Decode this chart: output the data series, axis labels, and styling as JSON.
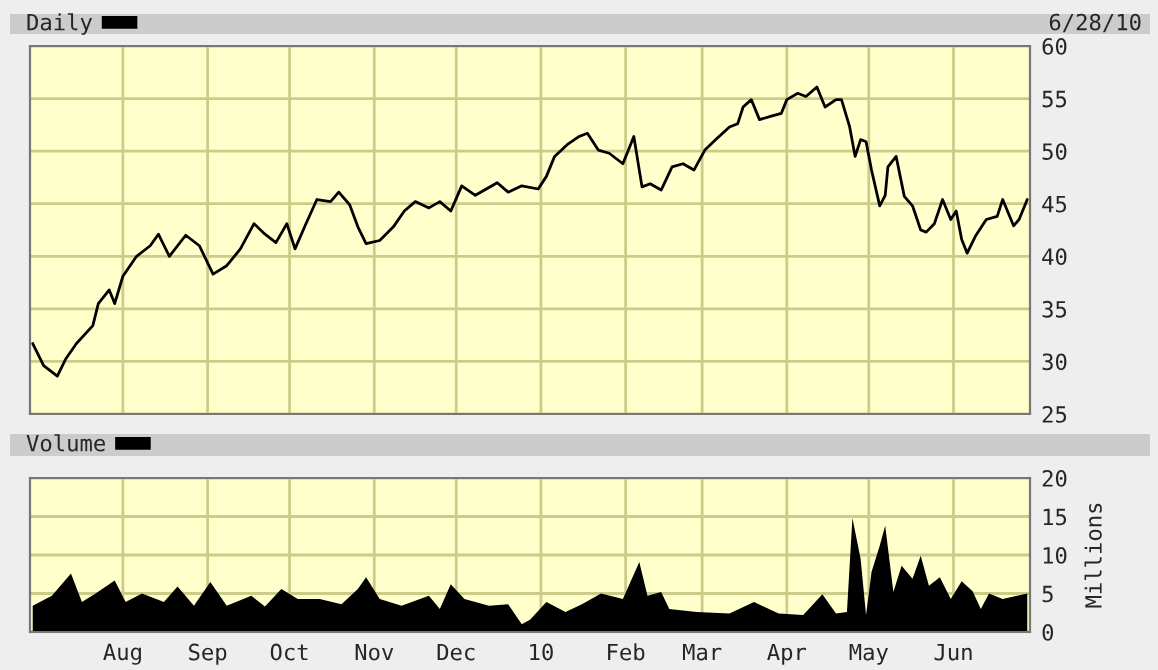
{
  "chart_data": [
    {
      "type": "line",
      "tick_labels": "y",
      "grid": true,
      "legend": "top left",
      "annotations": [
        "6/28/10"
      ],
      "xticks": [
        {
          "value": "2009-08-01",
          "label": null
        },
        {
          "value": "2009-09-01",
          "label": null
        },
        {
          "value": "2009-10-01",
          "label": null
        },
        {
          "value": "2009-11-01",
          "label": null
        },
        {
          "value": "2009-12-01",
          "label": null
        },
        {
          "value": "2010-01-01",
          "label": null
        },
        {
          "value": "2010-02-01",
          "label": null
        },
        {
          "value": "2010-03-01",
          "label": null
        },
        {
          "value": "2010-04-01",
          "label": null
        },
        {
          "value": "2010-05-01",
          "label": null
        },
        {
          "value": "2010-06-01",
          "label": null
        }
      ],
      "x": [
        "2009-06-29",
        "2009-07-03",
        "2009-07-08",
        "2009-07-11",
        "2009-07-15",
        "2009-07-21",
        "2009-07-23",
        "2009-07-27",
        "2009-07-29",
        "2009-08-01",
        "2009-08-06",
        "2009-08-11",
        "2009-08-14",
        "2009-08-18",
        "2009-08-24",
        "2009-08-29",
        "2009-09-03",
        "2009-09-08",
        "2009-09-13",
        "2009-09-18",
        "2009-09-22",
        "2009-09-26",
        "2009-09-30",
        "2009-10-03",
        "2009-10-07",
        "2009-10-11",
        "2009-10-16",
        "2009-10-19",
        "2009-10-23",
        "2009-10-26",
        "2009-10-29",
        "2009-11-03",
        "2009-11-08",
        "2009-11-12",
        "2009-11-16",
        "2009-11-21",
        "2009-11-25",
        "2009-11-29",
        "2009-12-03",
        "2009-12-08",
        "2009-12-12",
        "2009-12-16",
        "2009-12-20",
        "2009-12-25",
        "2009-12-31",
        "2010-01-03",
        "2010-01-06",
        "2010-01-11",
        "2010-01-15",
        "2010-01-18",
        "2010-01-22",
        "2010-01-26",
        "2010-01-31",
        "2010-02-04",
        "2010-02-07",
        "2010-02-10",
        "2010-02-14",
        "2010-02-18",
        "2010-02-22",
        "2010-02-26",
        "2010-03-02",
        "2010-03-06",
        "2010-03-11",
        "2010-03-14",
        "2010-03-16",
        "2010-03-19",
        "2010-03-22",
        "2010-03-26",
        "2010-03-30",
        "2010-04-01",
        "2010-04-05",
        "2010-04-08",
        "2010-04-12",
        "2010-04-15",
        "2010-04-19",
        "2010-04-21",
        "2010-04-24",
        "2010-04-26",
        "2010-04-28",
        "2010-04-30",
        "2010-05-02",
        "2010-05-05",
        "2010-05-07",
        "2010-05-08",
        "2010-05-11",
        "2010-05-14",
        "2010-05-17",
        "2010-05-20",
        "2010-05-22",
        "2010-05-25",
        "2010-05-28",
        "2010-05-31",
        "2010-06-02",
        "2010-06-04",
        "2010-06-06",
        "2010-06-09",
        "2010-06-13",
        "2010-06-17",
        "2010-06-19",
        "2010-06-23",
        "2010-06-25",
        "2010-06-28"
      ],
      "series": [
        {
          "name": "Daily",
          "color": "#000000",
          "values": [
            31.7,
            29.6,
            28.6,
            30.2,
            31.7,
            33.4,
            35.5,
            36.8,
            35.5,
            38.1,
            40.0,
            41.0,
            42.1,
            40.0,
            42.0,
            41.0,
            38.3,
            39.1,
            40.7,
            43.1,
            42.1,
            41.3,
            43.1,
            40.7,
            43.1,
            45.4,
            45.2,
            46.1,
            44.9,
            42.8,
            41.2,
            41.5,
            42.8,
            44.3,
            45.2,
            44.6,
            45.2,
            44.3,
            46.7,
            45.8,
            46.4,
            47.0,
            46.1,
            46.7,
            46.4,
            47.6,
            49.5,
            50.7,
            51.4,
            51.7,
            50.1,
            49.8,
            48.8,
            51.4,
            46.6,
            46.9,
            46.3,
            48.5,
            48.8,
            48.2,
            50.1,
            51.1,
            52.3,
            52.6,
            54.2,
            54.9,
            53.0,
            53.3,
            53.6,
            54.9,
            55.5,
            55.2,
            56.1,
            54.2,
            54.9,
            54.9,
            52.3,
            49.5,
            51.1,
            50.9,
            48.2,
            44.8,
            45.8,
            48.5,
            49.5,
            45.7,
            44.8,
            42.5,
            42.3,
            43.1,
            45.4,
            43.5,
            44.3,
            41.6,
            40.3,
            41.9,
            43.5,
            43.8,
            45.4,
            42.9,
            43.5,
            45.4
          ]
        }
      ],
      "xlim": [
        "2009-06-28",
        "2010-06-29"
      ],
      "ylim": [
        25,
        60
      ],
      "yticks": [
        25,
        30,
        35,
        40,
        45,
        50,
        55,
        60
      ]
    },
    {
      "type": "area",
      "grid": true,
      "legend": "top left",
      "ylabel": "Millions",
      "x": [
        "2009-06-29",
        "2009-07-06",
        "2009-07-13",
        "2009-07-17",
        "2009-07-22",
        "2009-07-29",
        "2009-08-02",
        "2009-08-08",
        "2009-08-16",
        "2009-08-21",
        "2009-08-27",
        "2009-09-02",
        "2009-09-08",
        "2009-09-17",
        "2009-09-22",
        "2009-09-28",
        "2009-10-04",
        "2009-10-12",
        "2009-10-20",
        "2009-10-26",
        "2009-10-29",
        "2009-11-03",
        "2009-11-11",
        "2009-11-21",
        "2009-11-25",
        "2009-11-29",
        "2009-12-04",
        "2009-12-13",
        "2009-12-20",
        "2009-12-25",
        "2009-12-28",
        "2010-01-03",
        "2010-01-10",
        "2010-01-16",
        "2010-01-23",
        "2010-01-31",
        "2010-02-06",
        "2010-02-09",
        "2010-02-14",
        "2010-02-17",
        "2010-02-27",
        "2010-03-11",
        "2010-03-20",
        "2010-03-29",
        "2010-04-07",
        "2010-04-14",
        "2010-04-19",
        "2010-04-23",
        "2010-04-25",
        "2010-04-28",
        "2010-04-30",
        "2010-05-02",
        "2010-05-05",
        "2010-05-07",
        "2010-05-10",
        "2010-05-13",
        "2010-05-17",
        "2010-05-20",
        "2010-05-23",
        "2010-05-27",
        "2010-05-31",
        "2010-06-04",
        "2010-06-08",
        "2010-06-11",
        "2010-06-14",
        "2010-06-19",
        "2010-06-28"
      ],
      "series": [
        {
          "name": "Volume",
          "color": "#000000",
          "values": [
            3.4,
            4.7,
            7.6,
            3.9,
            5.0,
            6.7,
            3.9,
            5.0,
            3.9,
            5.9,
            3.4,
            6.5,
            3.4,
            4.7,
            3.3,
            5.6,
            4.3,
            4.3,
            3.6,
            5.6,
            7.1,
            4.3,
            3.4,
            4.7,
            3.0,
            6.2,
            4.3,
            3.4,
            3.6,
            1.0,
            1.6,
            3.9,
            2.6,
            3.6,
            5.0,
            4.3,
            9.1,
            4.7,
            5.2,
            3.0,
            2.6,
            2.4,
            3.9,
            2.4,
            2.2,
            4.9,
            2.4,
            2.6,
            14.8,
            9.5,
            2.2,
            7.8,
            11.2,
            13.8,
            5.2,
            8.6,
            6.9,
            9.9,
            6.0,
            7.1,
            4.3,
            6.6,
            5.3,
            3.0,
            5.0,
            4.3,
            5.0
          ]
        }
      ],
      "xlim": [
        "2009-06-28",
        "2010-06-29"
      ],
      "xticks": [
        {
          "value": "2009-08-01",
          "label": "Aug"
        },
        {
          "value": "2009-09-01",
          "label": "Sep"
        },
        {
          "value": "2009-10-01",
          "label": "Oct"
        },
        {
          "value": "2009-11-01",
          "label": "Nov"
        },
        {
          "value": "2009-12-01",
          "label": "Dec"
        },
        {
          "value": "2010-01-01",
          "label": "10"
        },
        {
          "value": "2010-02-01",
          "label": "Feb"
        },
        {
          "value": "2010-03-01",
          "label": "Mar"
        },
        {
          "value": "2010-04-01",
          "label": "Apr"
        },
        {
          "value": "2010-05-01",
          "label": "May"
        },
        {
          "value": "2010-06-01",
          "label": "Jun"
        }
      ],
      "ylim": [
        0,
        20
      ],
      "yticks": [
        0,
        5,
        10,
        15,
        20
      ]
    }
  ]
}
